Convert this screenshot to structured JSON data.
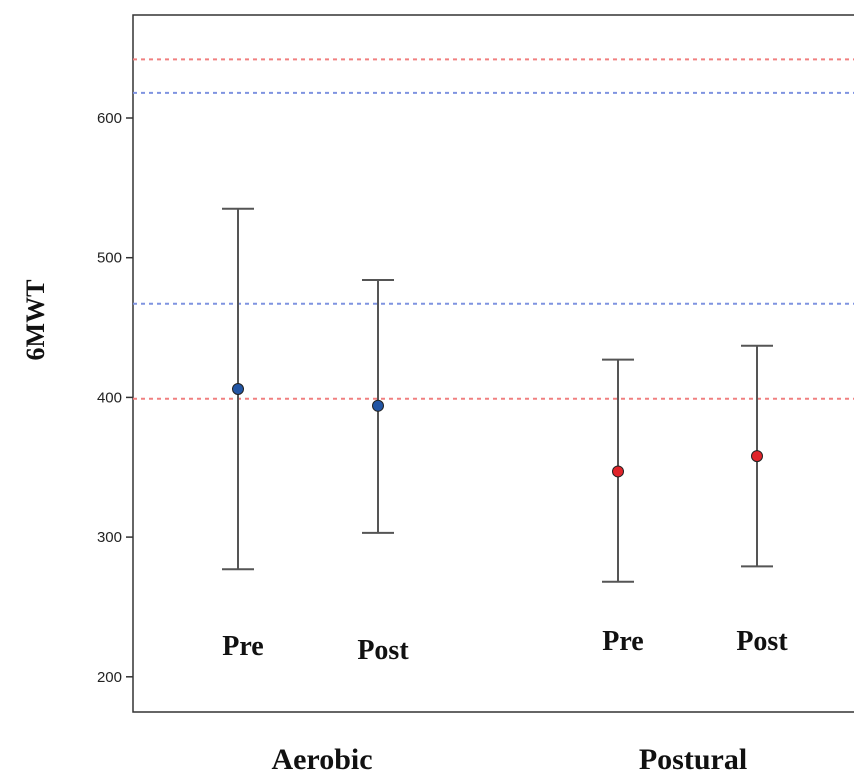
{
  "chart_data": {
    "type": "scatter",
    "ylabel": "6MWT",
    "ylim": [
      190,
      665
    ],
    "yticks": [
      200,
      300,
      400,
      500,
      600
    ],
    "grid": false,
    "groups": [
      "Aerobic",
      "Postural"
    ],
    "points": [
      {
        "group": "Aerobic",
        "label": "Pre",
        "mean": 406,
        "lower": 277,
        "upper": 535,
        "color": "#2255a4"
      },
      {
        "group": "Aerobic",
        "label": "Post",
        "mean": 394,
        "lower": 303,
        "upper": 484,
        "color": "#2255a4"
      },
      {
        "group": "Postural",
        "label": "Pre",
        "mean": 347,
        "lower": 268,
        "upper": 427,
        "color": "#e0242a"
      },
      {
        "group": "Postural",
        "label": "Post",
        "mean": 358,
        "lower": 279,
        "upper": 437,
        "color": "#e0242a"
      }
    ],
    "reference_lines": [
      {
        "value": 642,
        "color": "#f08080"
      },
      {
        "value": 618,
        "color": "#7f93e0"
      },
      {
        "value": 467,
        "color": "#7f93e0"
      },
      {
        "value": 399,
        "color": "#f08080"
      }
    ]
  }
}
